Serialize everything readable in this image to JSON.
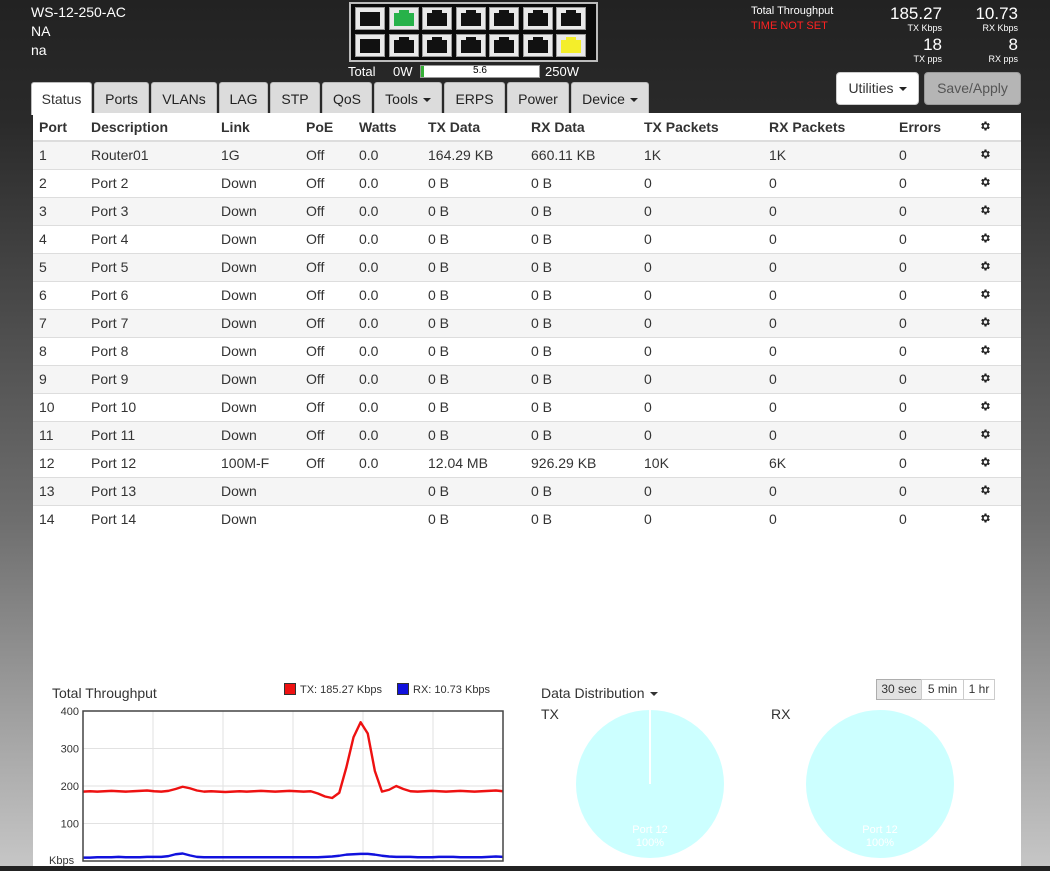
{
  "device": {
    "model": "WS-12-250-AC",
    "line2": "NA",
    "line3": "na"
  },
  "power": {
    "label": "Total",
    "min": "0W",
    "max": "250W",
    "value": "5.6",
    "fraction": 0.0224
  },
  "ports_front": {
    "top": [
      "sfp",
      "green",
      "dark",
      "dark",
      "dark",
      "dark",
      "dark"
    ],
    "bottom": [
      "sfp",
      "dark",
      "dark",
      "dark",
      "dark",
      "dark",
      "yellow"
    ]
  },
  "throughput": {
    "label": "Total Throughput",
    "warning": "TIME NOT SET",
    "tx_kbps": "185.27",
    "tx_kbps_unit": "TX Kbps",
    "rx_kbps": "10.73",
    "rx_kbps_unit": "RX Kbps",
    "tx_pps": "18",
    "tx_pps_unit": "TX pps",
    "rx_pps": "8",
    "rx_pps_unit": "RX pps"
  },
  "tabs": [
    {
      "label": "Status",
      "dropdown": false
    },
    {
      "label": "Ports",
      "dropdown": false
    },
    {
      "label": "VLANs",
      "dropdown": false
    },
    {
      "label": "LAG",
      "dropdown": false
    },
    {
      "label": "STP",
      "dropdown": false
    },
    {
      "label": "QoS",
      "dropdown": false
    },
    {
      "label": "Tools",
      "dropdown": true
    },
    {
      "label": "ERPS",
      "dropdown": false
    },
    {
      "label": "Power",
      "dropdown": false
    },
    {
      "label": "Device",
      "dropdown": true
    }
  ],
  "buttons": {
    "utilities": "Utilities",
    "save": "Save/Apply"
  },
  "table": {
    "headers": [
      "Port",
      "Description",
      "Link",
      "PoE",
      "Watts",
      "TX Data",
      "RX Data",
      "TX Packets",
      "RX Packets",
      "Errors"
    ],
    "rows": [
      [
        "1",
        "Router01",
        "1G",
        "Off",
        "0.0",
        "164.29 KB",
        "660.11 KB",
        "1K",
        "1K",
        "0"
      ],
      [
        "2",
        "Port 2",
        "Down",
        "Off",
        "0.0",
        "0 B",
        "0 B",
        "0",
        "0",
        "0"
      ],
      [
        "3",
        "Port 3",
        "Down",
        "Off",
        "0.0",
        "0 B",
        "0 B",
        "0",
        "0",
        "0"
      ],
      [
        "4",
        "Port 4",
        "Down",
        "Off",
        "0.0",
        "0 B",
        "0 B",
        "0",
        "0",
        "0"
      ],
      [
        "5",
        "Port 5",
        "Down",
        "Off",
        "0.0",
        "0 B",
        "0 B",
        "0",
        "0",
        "0"
      ],
      [
        "6",
        "Port 6",
        "Down",
        "Off",
        "0.0",
        "0 B",
        "0 B",
        "0",
        "0",
        "0"
      ],
      [
        "7",
        "Port 7",
        "Down",
        "Off",
        "0.0",
        "0 B",
        "0 B",
        "0",
        "0",
        "0"
      ],
      [
        "8",
        "Port 8",
        "Down",
        "Off",
        "0.0",
        "0 B",
        "0 B",
        "0",
        "0",
        "0"
      ],
      [
        "9",
        "Port 9",
        "Down",
        "Off",
        "0.0",
        "0 B",
        "0 B",
        "0",
        "0",
        "0"
      ],
      [
        "10",
        "Port 10",
        "Down",
        "Off",
        "0.0",
        "0 B",
        "0 B",
        "0",
        "0",
        "0"
      ],
      [
        "11",
        "Port 11",
        "Down",
        "Off",
        "0.0",
        "0 B",
        "0 B",
        "0",
        "0",
        "0"
      ],
      [
        "12",
        "Port 12",
        "100M-F",
        "Off",
        "0.0",
        "12.04 MB",
        "926.29 KB",
        "10K",
        "6K",
        "0"
      ],
      [
        "13",
        "Port 13",
        "Down",
        "",
        "",
        "0 B",
        "0 B",
        "0",
        "0",
        "0"
      ],
      [
        "14",
        "Port 14",
        "Down",
        "",
        "",
        "0 B",
        "0 B",
        "0",
        "0",
        "0"
      ]
    ]
  },
  "throughput_chart": {
    "title": "Total Throughput",
    "legend_tx": "TX: 185.27 Kbps",
    "legend_rx": "RX: 10.73 Kbps",
    "tx_color": "#ee1111",
    "rx_color": "#1111dd",
    "y_ticks": [
      "400",
      "300",
      "200",
      "100"
    ],
    "y_unit": "Kbps"
  },
  "chart_data": {
    "type": "line",
    "title": "Total Throughput",
    "ylabel": "Kbps",
    "ylim": [
      0,
      400
    ],
    "x": [
      0,
      1,
      2,
      3,
      4,
      5,
      6,
      7,
      8,
      9,
      10,
      11,
      12,
      13,
      14,
      15,
      16,
      17,
      18,
      19,
      20,
      21,
      22,
      23,
      24,
      25,
      26,
      27,
      28,
      29,
      30,
      31,
      32,
      33,
      34,
      35,
      36,
      37,
      38,
      39,
      40,
      41,
      42,
      43,
      44,
      45,
      46,
      47,
      48,
      49,
      50,
      51,
      52,
      53,
      54,
      55,
      56,
      57,
      58,
      59
    ],
    "series": [
      {
        "name": "TX: 185.27 Kbps",
        "color": "#ee1111",
        "values": [
          185,
          186,
          185,
          186,
          187,
          186,
          185,
          186,
          187,
          188,
          186,
          185,
          187,
          192,
          198,
          194,
          188,
          185,
          186,
          185,
          184,
          185,
          186,
          185,
          186,
          187,
          186,
          185,
          186,
          187,
          186,
          185,
          186,
          180,
          172,
          168,
          182,
          250,
          330,
          370,
          340,
          240,
          185,
          190,
          200,
          192,
          186,
          185,
          186,
          187,
          186,
          185,
          186,
          187,
          186,
          185,
          186,
          187,
          188,
          186
        ]
      },
      {
        "name": "RX: 10.73 Kbps",
        "color": "#1111dd",
        "values": [
          9,
          9,
          10,
          10,
          10,
          11,
          10,
          10,
          10,
          11,
          11,
          11,
          13,
          18,
          20,
          15,
          11,
          10,
          10,
          10,
          10,
          10,
          10,
          10,
          10,
          10,
          10,
          10,
          10,
          10,
          10,
          10,
          10,
          10,
          11,
          12,
          14,
          17,
          18,
          19,
          19,
          17,
          14,
          12,
          11,
          11,
          11,
          10,
          10,
          10,
          11,
          11,
          11,
          10,
          10,
          10,
          10,
          11,
          12,
          11
        ]
      }
    ]
  },
  "distribution": {
    "title": "Data Distribution",
    "ranges": [
      "30 sec",
      "5 min",
      "1 hr"
    ],
    "active_range": "30 sec",
    "tx_label": "TX",
    "rx_label": "RX",
    "pie_color": "#ccffff",
    "tx_slice_label": "Port 12",
    "tx_slice_pct": "100%",
    "rx_slice_label": "Port 12",
    "rx_slice_pct": "100%"
  },
  "icons": {
    "gear": "gear-icon",
    "caret": "caret-down-icon"
  }
}
